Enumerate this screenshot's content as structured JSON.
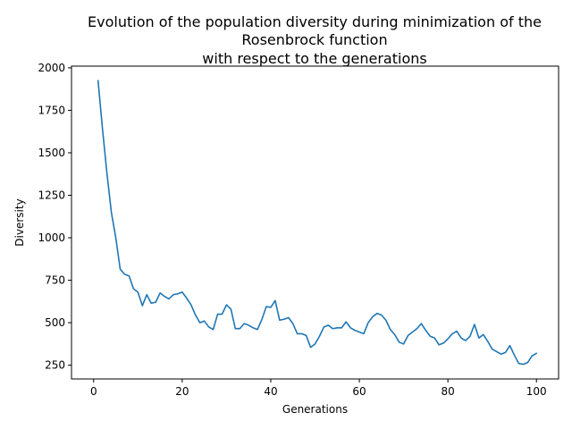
{
  "chart_data": {
    "type": "line",
    "title_lines": [
      "Evolution of the population diversity during minimization of the",
      "Rosenbrock function",
      "with respect to the generations"
    ],
    "xlabel": "Generations",
    "ylabel": "Diversity",
    "xlim": [
      -5,
      105
    ],
    "ylim": [
      169,
      2010
    ],
    "xticks": [
      0,
      20,
      40,
      60,
      80,
      100
    ],
    "yticks": [
      250,
      500,
      750,
      1000,
      1250,
      1500,
      1750,
      2000
    ],
    "xtick_labels": [
      "0",
      "20",
      "40",
      "60",
      "80",
      "100"
    ],
    "ytick_labels": [
      "250",
      "500",
      "750",
      "1000",
      "1250",
      "1500",
      "1750",
      "2000"
    ],
    "grid": false,
    "legend": "none",
    "line_color": "#1f77b4",
    "series": [
      {
        "x": [
          1,
          2,
          3,
          4,
          5,
          6,
          7,
          8,
          9,
          10,
          11,
          12,
          13,
          14,
          15,
          16,
          17,
          18,
          19,
          20,
          21,
          22,
          23,
          24,
          25,
          26,
          27,
          28,
          29,
          30,
          31,
          32,
          33,
          34,
          35,
          36,
          37,
          38,
          39,
          40,
          41,
          42,
          43,
          44,
          45,
          46,
          47,
          48,
          49,
          50,
          51,
          52,
          53,
          54,
          55,
          56,
          57,
          58,
          59,
          60,
          61,
          62,
          63,
          64,
          65,
          66,
          67,
          68,
          69,
          70,
          71,
          72,
          73,
          74,
          75,
          76,
          77,
          78,
          79,
          80,
          81,
          82,
          83,
          84,
          85,
          86,
          87,
          88,
          89,
          90,
          91,
          92,
          93,
          94,
          95,
          96,
          97,
          98,
          99,
          100
        ],
        "y": [
          1925,
          1640,
          1380,
          1150,
          1000,
          815,
          785,
          775,
          700,
          680,
          600,
          665,
          615,
          620,
          675,
          655,
          640,
          665,
          670,
          680,
          645,
          605,
          545,
          500,
          510,
          475,
          460,
          550,
          550,
          605,
          580,
          465,
          465,
          495,
          485,
          470,
          460,
          520,
          595,
          590,
          630,
          515,
          520,
          530,
          495,
          435,
          435,
          425,
          355,
          375,
          420,
          475,
          485,
          465,
          470,
          470,
          505,
          470,
          455,
          445,
          435,
          500,
          535,
          555,
          545,
          515,
          460,
          430,
          385,
          375,
          425,
          445,
          465,
          495,
          455,
          420,
          410,
          370,
          380,
          405,
          435,
          450,
          410,
          395,
          420,
          490,
          410,
          430,
          390,
          345,
          330,
          315,
          325,
          365,
          310,
          260,
          255,
          265,
          305,
          320
        ]
      }
    ]
  }
}
